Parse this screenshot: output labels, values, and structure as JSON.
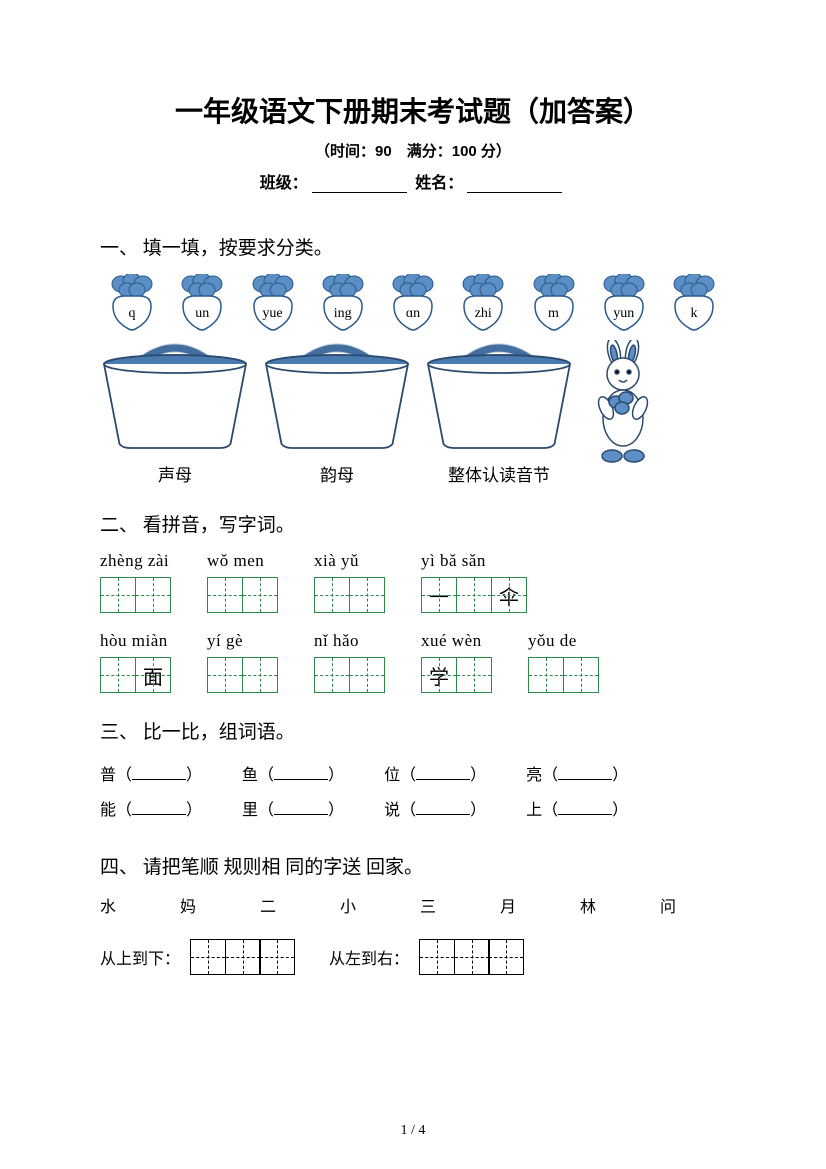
{
  "header": {
    "title": "一年级语文下册期末考试题（加答案）",
    "subtitle": "（时间：90　满分：100 分）",
    "class_label": "班级：",
    "name_label": "姓名："
  },
  "section1": {
    "heading": "一、 填一填，按要求分类。",
    "radishes": [
      "q",
      "un",
      "yue",
      "ing",
      "ɑn",
      "zhi",
      "m",
      "yun",
      "k"
    ],
    "baskets": [
      "声母",
      "韵母",
      "整体认读音节"
    ],
    "radish_leaf_color": "#5b8fc5",
    "radish_body_color": "#ffffff",
    "radish_outline": "#2b5a8c",
    "basket_color": "#4a7bb0",
    "basket_outline": "#2b4a6e"
  },
  "section2": {
    "heading": "二、 看拼音，写字词。",
    "row1": [
      {
        "pinyin": "zhèng zài",
        "cells": [
          "",
          ""
        ]
      },
      {
        "pinyin": "wǒ men",
        "cells": [
          "",
          ""
        ]
      },
      {
        "pinyin": "xià yǔ",
        "cells": [
          "",
          ""
        ]
      },
      {
        "pinyin": "yì bǎ sǎn",
        "cells": [
          "一",
          "",
          "伞"
        ]
      }
    ],
    "row2": [
      {
        "pinyin": "hòu miàn",
        "cells": [
          "",
          "面"
        ]
      },
      {
        "pinyin": "yí gè",
        "cells": [
          "",
          ""
        ]
      },
      {
        "pinyin": "nǐ hǎo",
        "cells": [
          "",
          ""
        ]
      },
      {
        "pinyin": "xué wèn",
        "cells": [
          "学",
          ""
        ]
      },
      {
        "pinyin": "yǒu de",
        "cells": [
          "",
          ""
        ]
      }
    ],
    "box_border_color": "#2a8a4a"
  },
  "section3": {
    "heading": "三、 比一比，组词语。",
    "rows": [
      [
        "普",
        "鱼",
        "位",
        "亮"
      ],
      [
        "能",
        "里",
        "说",
        "上"
      ]
    ]
  },
  "section4": {
    "heading": "四、 请把笔顺 规则相 同的字送 回家。",
    "chars": "水　妈　二　小　三　月　林　问",
    "label1": "从上到下：",
    "label2": "从左到右："
  },
  "page": "1 / 4"
}
